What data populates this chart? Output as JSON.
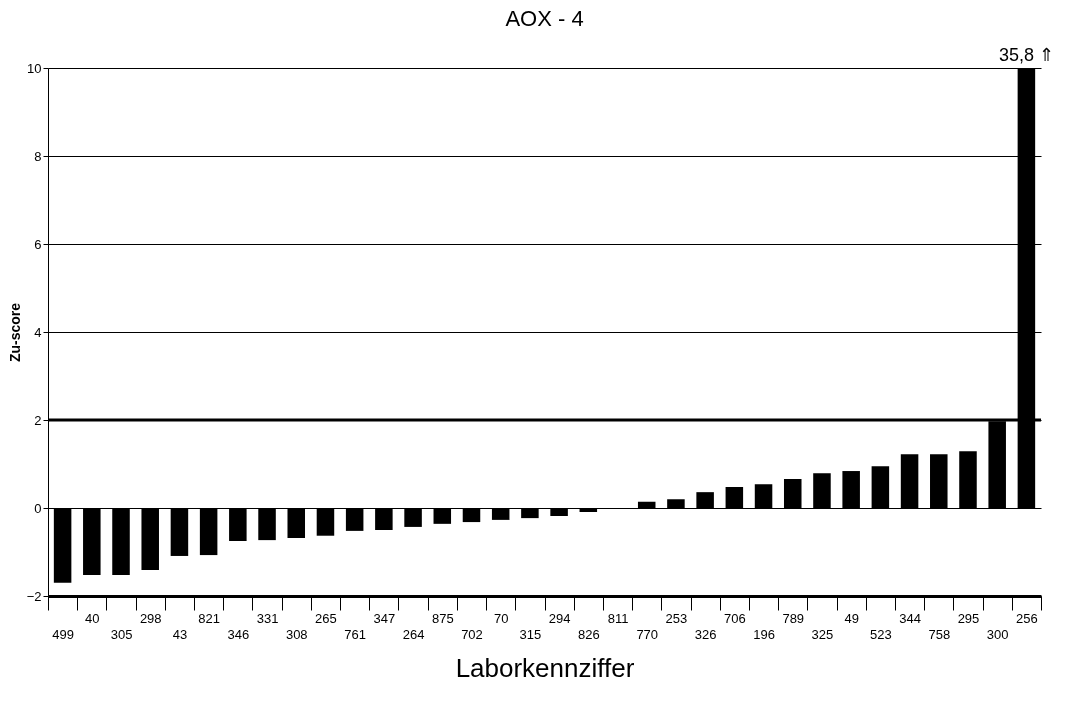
{
  "chart_data": {
    "type": "bar",
    "title": "AOX - 4",
    "xlabel": "Laborkennziffer",
    "ylabel": "Zu-score",
    "categories": [
      "499",
      "40",
      "305",
      "298",
      "43",
      "821",
      "346",
      "331",
      "308",
      "265",
      "761",
      "347",
      "264",
      "875",
      "702",
      "70",
      "315",
      "294",
      "826",
      "811",
      "770",
      "253",
      "326",
      "706",
      "196",
      "789",
      "325",
      "49",
      "523",
      "344",
      "758",
      "295",
      "300",
      "256"
    ],
    "values": [
      -1.7,
      -1.52,
      -1.52,
      -1.41,
      -1.09,
      -1.07,
      -0.75,
      -0.73,
      -0.68,
      -0.63,
      -0.52,
      -0.5,
      -0.43,
      -0.36,
      -0.32,
      -0.27,
      -0.23,
      -0.18,
      -0.09,
      -0.02,
      0.14,
      0.2,
      0.36,
      0.48,
      0.54,
      0.66,
      0.79,
      0.84,
      0.95,
      1.22,
      1.22,
      1.29,
      1.97,
      10
    ],
    "color": "#000000",
    "ylim": [
      -2,
      10
    ],
    "yticks": [
      -2,
      0,
      2,
      4,
      6,
      8,
      10
    ],
    "grid": "y",
    "ref_lines": [
      {
        "axis": "y",
        "value": 2,
        "color": "#000000"
      }
    ],
    "annotations": [
      {
        "text": "35,8 ⇑",
        "x": "256",
        "y": 10
      }
    ]
  }
}
